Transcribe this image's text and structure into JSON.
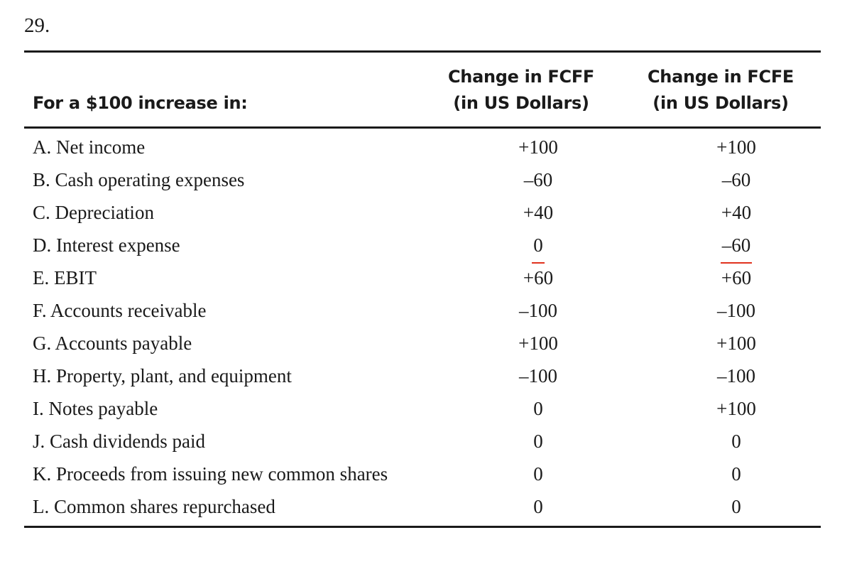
{
  "question_number": "29.",
  "table": {
    "header": {
      "label": "For a $100 increase in:",
      "fcff_line1": "Change in FCFF",
      "fcff_line2": "(in US Dollars)",
      "fcfe_line1": "Change in FCFE",
      "fcfe_line2": "(in US Dollars)"
    },
    "rows": [
      {
        "label": "A. Net income",
        "fcff": "+100",
        "fcfe": "+100"
      },
      {
        "label": "B. Cash operating expenses",
        "fcff": "–60",
        "fcfe": "–60"
      },
      {
        "label": "C. Depreciation",
        "fcff": "+40",
        "fcfe": "+40"
      },
      {
        "label": "D. Interest expense",
        "fcff": "0",
        "fcfe": "–60",
        "highlight_color": "#e0321e"
      },
      {
        "label": "E. EBIT",
        "fcff": "+60",
        "fcfe": "+60"
      },
      {
        "label": "F. Accounts receivable",
        "fcff": "–100",
        "fcfe": "–100"
      },
      {
        "label": "G. Accounts payable",
        "fcff": "+100",
        "fcfe": "+100"
      },
      {
        "label": "H. Property, plant, and equipment",
        "fcff": "–100",
        "fcfe": "–100"
      },
      {
        "label": "I. Notes payable",
        "fcff": "0",
        "fcfe": "+100"
      },
      {
        "label": "J. Cash dividends paid",
        "fcff": "0",
        "fcfe": "0"
      },
      {
        "label": "K. Proceeds from issuing new common shares",
        "fcff": "0",
        "fcfe": "0"
      },
      {
        "label": "L. Common shares repurchased",
        "fcff": "0",
        "fcfe": "0"
      }
    ]
  }
}
